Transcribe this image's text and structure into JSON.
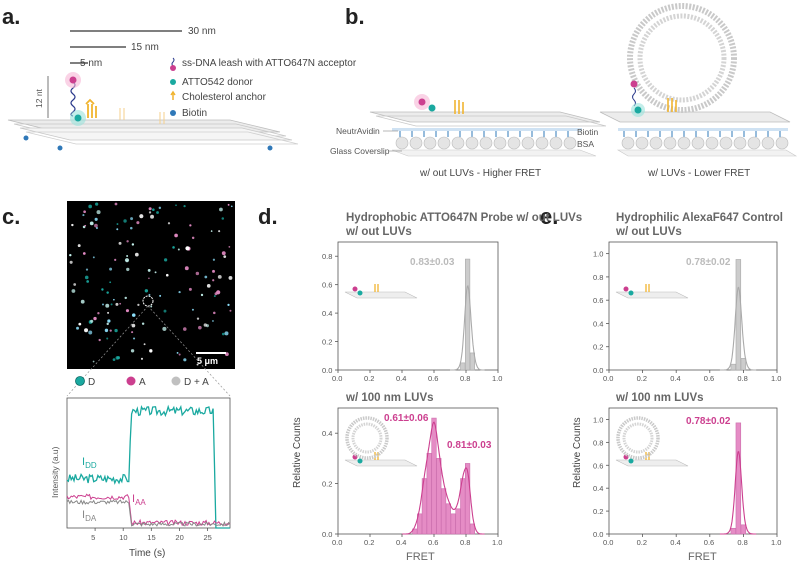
{
  "panels": {
    "a": "a.",
    "b": "b.",
    "c": "c.",
    "d": "d.",
    "e": "e."
  },
  "panel_a": {
    "scale_30": "30 nm",
    "scale_15": "15 nm",
    "scale_5": "5 nm",
    "length_12nt": "12 nt",
    "legend": [
      "ss-DNA leash with ATTO647N acceptor",
      "ATTO542 donor",
      "Cholesterol anchor",
      "Biotin"
    ]
  },
  "panel_b": {
    "neutravidin": "NeutrAvidin",
    "glass": "Glass Coverslip",
    "biotin": "Biotin",
    "bsa": "BSA",
    "caption_left": "w/ out LUVs - Higher FRET",
    "caption_right": "w/ LUVs - Lower FRET"
  },
  "panel_c": {
    "scalebar": "5 μm",
    "legend_d": "D",
    "legend_a": "A",
    "legend_da": "D + A",
    "ylabel": "Intensity (a.u)",
    "xlabel": "Time (s)",
    "xticks": [
      "5",
      "10",
      "15",
      "20",
      "25"
    ],
    "i_dd": "I",
    "i_dd_sub": "DD",
    "i_aa": "I",
    "i_aa_sub": "AA",
    "i_da": "I",
    "i_da_sub": "DA"
  },
  "shared": {
    "ylabel": "Relative Counts",
    "xlabel": "FRET",
    "xticks": [
      "0.0",
      "0.2",
      "0.4",
      "0.6",
      "0.8",
      "1.0"
    ],
    "yticks_top_d": [
      "0.0",
      "0.2",
      "0.4",
      "0.6",
      "0.8"
    ],
    "yticks_bot_d": [
      "0.0",
      "0.2",
      "0.4"
    ],
    "yticks_e": [
      "0.0",
      "0.2",
      "0.4",
      "0.6",
      "0.8",
      "1.0"
    ]
  },
  "colors": {
    "teal": "#1aa9a0",
    "magenta": "#cc3f8f",
    "pink": "#e58cc5",
    "gray": "#bfbfbf",
    "yellow": "#f0b430",
    "blue": "#2f78b8"
  },
  "chart_data": [
    {
      "type": "line",
      "id": "c-trace",
      "xlabel": "Time (s)",
      "ylabel": "Intensity (a.u)",
      "xlim": [
        0,
        29
      ],
      "series": [
        {
          "name": "I_DD",
          "x": [
            0,
            11,
            11.5,
            26,
            26.5,
            29
          ],
          "values": [
            0.38,
            0.38,
            0.9,
            0.9,
            0.0,
            0.0
          ]
        },
        {
          "name": "I_AA",
          "x": [
            0,
            11,
            11.5,
            29
          ],
          "values": [
            0.24,
            0.24,
            0.04,
            0.04
          ]
        },
        {
          "name": "I_DA",
          "x": [
            0,
            11,
            11.5,
            29
          ],
          "values": [
            0.2,
            0.2,
            0.03,
            0.03
          ]
        }
      ]
    },
    {
      "type": "bar",
      "id": "d-top",
      "title": "Hydrophobic ATTO647N Probe w/ out LUVs",
      "annotation": "0.83±0.03",
      "xlabel": "FRET",
      "ylabel": "Relative Counts",
      "xlim": [
        0,
        1.0
      ],
      "ylim": [
        0,
        0.9
      ],
      "bin_centers": [
        0.78,
        0.81,
        0.84
      ],
      "values": [
        0.05,
        0.78,
        0.12
      ]
    },
    {
      "type": "bar",
      "id": "d-bottom",
      "title": "w/ 100 nm LUVs",
      "annotations": [
        "0.61±0.06",
        "0.81±0.03"
      ],
      "xlabel": "FRET",
      "ylabel": "Relative Counts",
      "xlim": [
        0,
        1.0
      ],
      "ylim": [
        0,
        0.5
      ],
      "bin_centers": [
        0.48,
        0.51,
        0.54,
        0.57,
        0.6,
        0.63,
        0.66,
        0.69,
        0.72,
        0.75,
        0.78,
        0.81,
        0.84
      ],
      "values": [
        0.02,
        0.08,
        0.22,
        0.32,
        0.46,
        0.3,
        0.18,
        0.12,
        0.08,
        0.1,
        0.22,
        0.28,
        0.04
      ]
    },
    {
      "type": "bar",
      "id": "e-top",
      "title": "Hydrophilic AlexaF647 Control w/ out LUVs",
      "annotation": "0.78±0.02",
      "xlabel": "FRET",
      "ylabel": "Relative Counts",
      "xlim": [
        0,
        1.0
      ],
      "ylim": [
        0,
        1.1
      ],
      "bin_centers": [
        0.74,
        0.77,
        0.8
      ],
      "values": [
        0.05,
        0.95,
        0.1
      ]
    },
    {
      "type": "bar",
      "id": "e-bottom",
      "title": "w/ 100 nm LUVs",
      "annotation": "0.78±0.02",
      "xlabel": "FRET",
      "ylabel": "Relative Counts",
      "xlim": [
        0,
        1.0
      ],
      "ylim": [
        0,
        1.1
      ],
      "bin_centers": [
        0.74,
        0.77,
        0.8
      ],
      "values": [
        0.05,
        0.97,
        0.08
      ]
    }
  ]
}
